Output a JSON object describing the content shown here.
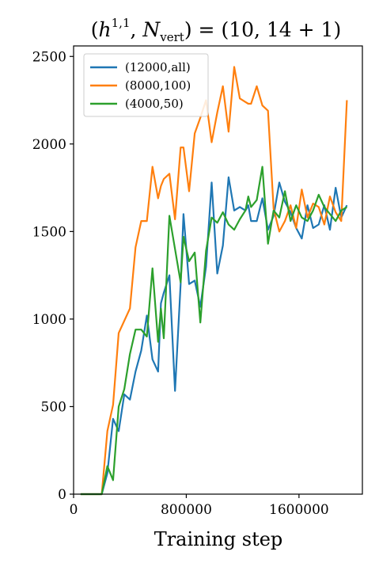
{
  "chart_data": {
    "type": "line",
    "title": "(h^{1,1}, N_vert) = (10, 14 + 1)",
    "title_parts": {
      "open": "(",
      "h": "h",
      "h_sup": "1,1",
      "comma": ", ",
      "n": "N",
      "n_sub": "vert",
      "close": ") = (10, 14 + 1)"
    },
    "xlabel": "Training step",
    "ylabel": "",
    "xlim": [
      0,
      2050000
    ],
    "ylim": [
      0,
      2560
    ],
    "xticks": [
      0,
      800000,
      1600000
    ],
    "xtick_labels": [
      "0",
      "800000",
      "1600000"
    ],
    "yticks": [
      0,
      500,
      1000,
      1500,
      2000,
      2500
    ],
    "ytick_labels": [
      "0",
      "500",
      "1000",
      "1500",
      "2000",
      "2500"
    ],
    "grid": false,
    "legend_position": "top-left",
    "series": [
      {
        "name": "(12000,all)",
        "color": "#1f77b4",
        "x": [
          50000,
          100000,
          150000,
          200000,
          240000,
          280000,
          320000,
          360000,
          400000,
          440000,
          480000,
          520000,
          560000,
          600000,
          620000,
          640000,
          680000,
          720000,
          760000,
          780000,
          820000,
          860000,
          900000,
          940000,
          980000,
          1020000,
          1060000,
          1100000,
          1140000,
          1180000,
          1220000,
          1240000,
          1260000,
          1300000,
          1340000,
          1380000,
          1420000,
          1460000,
          1500000,
          1540000,
          1580000,
          1620000,
          1660000,
          1700000,
          1740000,
          1780000,
          1820000,
          1860000,
          1900000,
          1940000
        ],
        "values": [
          0,
          0,
          0,
          0,
          120,
          430,
          360,
          570,
          540,
          700,
          820,
          1020,
          770,
          700,
          1090,
          1150,
          1250,
          590,
          1200,
          1600,
          1200,
          1220,
          1070,
          1300,
          1780,
          1260,
          1420,
          1810,
          1620,
          1640,
          1620,
          1650,
          1560,
          1560,
          1690,
          1510,
          1590,
          1780,
          1670,
          1610,
          1520,
          1460,
          1650,
          1520,
          1540,
          1650,
          1510,
          1750,
          1580,
          1650
        ]
      },
      {
        "name": "(8000,100)",
        "color": "#ff7f0e",
        "x": [
          50000,
          100000,
          150000,
          200000,
          240000,
          280000,
          320000,
          360000,
          400000,
          440000,
          480000,
          520000,
          560000,
          600000,
          620000,
          640000,
          680000,
          720000,
          760000,
          780000,
          820000,
          860000,
          900000,
          940000,
          980000,
          1020000,
          1060000,
          1100000,
          1140000,
          1180000,
          1220000,
          1240000,
          1260000,
          1300000,
          1340000,
          1380000,
          1420000,
          1460000,
          1500000,
          1540000,
          1580000,
          1620000,
          1660000,
          1700000,
          1740000,
          1780000,
          1820000,
          1860000,
          1900000,
          1940000
        ],
        "values": [
          0,
          0,
          0,
          0,
          360,
          510,
          920,
          990,
          1060,
          1410,
          1560,
          1560,
          1870,
          1690,
          1760,
          1800,
          1830,
          1570,
          1980,
          1980,
          1730,
          2060,
          2150,
          2250,
          2010,
          2180,
          2330,
          2070,
          2440,
          2260,
          2240,
          2230,
          2230,
          2330,
          2220,
          2190,
          1630,
          1500,
          1560,
          1650,
          1520,
          1740,
          1580,
          1660,
          1640,
          1540,
          1700,
          1610,
          1560,
          2250
        ]
      },
      {
        "name": "(4000,50)",
        "color": "#2ca02c",
        "x": [
          50000,
          100000,
          150000,
          200000,
          240000,
          280000,
          320000,
          360000,
          400000,
          440000,
          480000,
          520000,
          560000,
          600000,
          620000,
          640000,
          680000,
          720000,
          760000,
          780000,
          820000,
          860000,
          900000,
          940000,
          980000,
          1020000,
          1060000,
          1100000,
          1140000,
          1180000,
          1220000,
          1240000,
          1260000,
          1300000,
          1340000,
          1380000,
          1420000,
          1460000,
          1500000,
          1540000,
          1580000,
          1620000,
          1660000,
          1700000,
          1740000,
          1780000,
          1820000,
          1860000,
          1900000,
          1940000
        ],
        "values": [
          0,
          0,
          0,
          0,
          160,
          80,
          500,
          600,
          800,
          940,
          940,
          900,
          1290,
          870,
          1060,
          890,
          1590,
          1400,
          1210,
          1470,
          1330,
          1380,
          980,
          1390,
          1580,
          1550,
          1610,
          1540,
          1510,
          1570,
          1620,
          1700,
          1640,
          1680,
          1870,
          1430,
          1620,
          1580,
          1730,
          1560,
          1650,
          1580,
          1560,
          1620,
          1710,
          1640,
          1600,
          1560,
          1620,
          1640
        ]
      }
    ]
  }
}
